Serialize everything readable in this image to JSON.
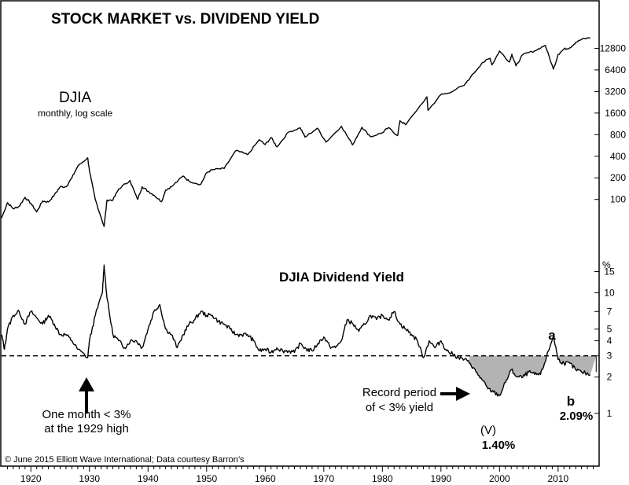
{
  "title": "STOCK MARKET vs. DIVIDEND YIELD",
  "credit": "© June 2015 Elliott Wave International; Data courtesy Barron’s",
  "upper": {
    "label": "DJIA",
    "sublabel": "monthly, log scale"
  },
  "lower": {
    "label": "DJIA Dividend Yield",
    "unit": "%"
  },
  "annotations": {
    "one_month_line1": "One month < 3%",
    "one_month_line2": "at the 1929 high",
    "record_line1": "Record period",
    "record_line2": "of < 3% yield",
    "wave_V": "(V)",
    "wave_V_value": "1.40%",
    "wave_a": "a",
    "wave_b": "b",
    "wave_b_value": "2.09%"
  },
  "chart_data": [
    {
      "type": "line",
      "name": "DJIA",
      "scale": "log",
      "yticks": [
        100,
        200,
        400,
        800,
        1600,
        3200,
        6400,
        12800
      ],
      "ylim": [
        40,
        22000
      ],
      "xlim": [
        1915,
        2017
      ],
      "xticks": [
        1920,
        1930,
        1940,
        1950,
        1960,
        1970,
        1980,
        1990,
        2000,
        2010
      ],
      "points": [
        [
          1915,
          55
        ],
        [
          1916,
          90
        ],
        [
          1917,
          74
        ],
        [
          1918,
          80
        ],
        [
          1919,
          107
        ],
        [
          1920,
          88
        ],
        [
          1921,
          67
        ],
        [
          1922,
          95
        ],
        [
          1923,
          92
        ],
        [
          1924,
          115
        ],
        [
          1925,
          150
        ],
        [
          1926,
          150
        ],
        [
          1927,
          200
        ],
        [
          1928,
          290
        ],
        [
          1929.7,
          381
        ],
        [
          1930,
          248
        ],
        [
          1931,
          100
        ],
        [
          1932.5,
          42
        ],
        [
          1933,
          98
        ],
        [
          1934,
          98
        ],
        [
          1935,
          140
        ],
        [
          1936.9,
          184
        ],
        [
          1938.2,
          100
        ],
        [
          1939,
          150
        ],
        [
          1940,
          130
        ],
        [
          1941,
          115
        ],
        [
          1942.3,
          93
        ],
        [
          1943,
          135
        ],
        [
          1944,
          150
        ],
        [
          1946,
          212
        ],
        [
          1947,
          180
        ],
        [
          1949,
          162
        ],
        [
          1950,
          235
        ],
        [
          1951,
          260
        ],
        [
          1953,
          270
        ],
        [
          1955,
          480
        ],
        [
          1957,
          420
        ],
        [
          1959,
          680
        ],
        [
          1960,
          580
        ],
        [
          1961,
          730
        ],
        [
          1962,
          540
        ],
        [
          1964,
          870
        ],
        [
          1966,
          995
        ],
        [
          1966.8,
          740
        ],
        [
          1968.9,
          985
        ],
        [
          1970.4,
          631
        ],
        [
          1973,
          1050
        ],
        [
          1974.9,
          577
        ],
        [
          1976.5,
          1014
        ],
        [
          1978,
          750
        ],
        [
          1980,
          850
        ],
        [
          1981,
          1000
        ],
        [
          1982.6,
          777
        ],
        [
          1983,
          1250
        ],
        [
          1984,
          1100
        ],
        [
          1987.6,
          2700
        ],
        [
          1987.8,
          1740
        ],
        [
          1990,
          2900
        ],
        [
          1991,
          3000
        ],
        [
          1994,
          3900
        ],
        [
          1995,
          5000
        ],
        [
          1997,
          8000
        ],
        [
          1998.4,
          9300
        ],
        [
          1998.7,
          7500
        ],
        [
          2000,
          11700
        ],
        [
          2001.7,
          8250
        ],
        [
          2002.1,
          10600
        ],
        [
          2002.8,
          7290
        ],
        [
          2004,
          10500
        ],
        [
          2006,
          11800
        ],
        [
          2007.8,
          14100
        ],
        [
          2009.2,
          6550
        ],
        [
          2010,
          10500
        ],
        [
          2011,
          12500
        ],
        [
          2012,
          13000
        ],
        [
          2013,
          15500
        ],
        [
          2014,
          17000
        ],
        [
          2015.5,
          18000
        ]
      ]
    },
    {
      "type": "line",
      "name": "DJIA Dividend Yield",
      "unit": "%",
      "scale": "log",
      "yticks": [
        1,
        2,
        3,
        4,
        5,
        7,
        10,
        15
      ],
      "ylim": [
        0.75,
        22
      ],
      "reference_line": 3,
      "xlim": [
        1915,
        2017
      ],
      "points": [
        [
          1915,
          4.5
        ],
        [
          1915.5,
          3.4
        ],
        [
          1916,
          5.0
        ],
        [
          1917,
          6.5
        ],
        [
          1918,
          7.0
        ],
        [
          1919,
          5.5
        ],
        [
          1920,
          7.0
        ],
        [
          1921,
          6.2
        ],
        [
          1922,
          5.5
        ],
        [
          1923,
          6.5
        ],
        [
          1924,
          5.5
        ],
        [
          1925,
          4.5
        ],
        [
          1926,
          4.5
        ],
        [
          1927,
          4.0
        ],
        [
          1928,
          3.4
        ],
        [
          1929.7,
          2.9
        ],
        [
          1930,
          4.0
        ],
        [
          1931,
          6.5
        ],
        [
          1932.2,
          10.0
        ],
        [
          1932.5,
          17.0
        ],
        [
          1933,
          9.0
        ],
        [
          1934,
          4.5
        ],
        [
          1935,
          4.0
        ],
        [
          1936,
          3.5
        ],
        [
          1937,
          4.0
        ],
        [
          1938,
          4.0
        ],
        [
          1939,
          3.5
        ],
        [
          1940,
          5.0
        ],
        [
          1941,
          7.0
        ],
        [
          1942,
          8.0
        ],
        [
          1943,
          5.0
        ],
        [
          1944,
          4.5
        ],
        [
          1945,
          3.5
        ],
        [
          1946,
          4.5
        ],
        [
          1947,
          5.5
        ],
        [
          1948,
          6.0
        ],
        [
          1949,
          7.0
        ],
        [
          1950,
          6.5
        ],
        [
          1951,
          6.5
        ],
        [
          1952,
          5.8
        ],
        [
          1953,
          5.5
        ],
        [
          1954,
          5.0
        ],
        [
          1955,
          4.5
        ],
        [
          1956,
          4.5
        ],
        [
          1957,
          4.5
        ],
        [
          1958,
          4.0
        ],
        [
          1959,
          3.3
        ],
        [
          1960,
          3.4
        ],
        [
          1961,
          3.2
        ],
        [
          1962,
          3.5
        ],
        [
          1963,
          3.3
        ],
        [
          1964,
          3.3
        ],
        [
          1965,
          3.2
        ],
        [
          1966,
          3.8
        ],
        [
          1967,
          3.4
        ],
        [
          1968,
          3.3
        ],
        [
          1969,
          3.8
        ],
        [
          1970,
          4.3
        ],
        [
          1971,
          3.6
        ],
        [
          1972,
          3.5
        ],
        [
          1973,
          4.0
        ],
        [
          1974,
          6.0
        ],
        [
          1975,
          5.5
        ],
        [
          1976,
          4.8
        ],
        [
          1977,
          5.5
        ],
        [
          1978,
          6.5
        ],
        [
          1979,
          6.0
        ],
        [
          1980,
          6.5
        ],
        [
          1981,
          6.0
        ],
        [
          1982,
          7.0
        ],
        [
          1983,
          5.5
        ],
        [
          1984,
          5.0
        ],
        [
          1985,
          4.5
        ],
        [
          1986,
          4.0
        ],
        [
          1987,
          2.9
        ],
        [
          1988,
          4.0
        ],
        [
          1989,
          3.5
        ],
        [
          1990,
          4.0
        ],
        [
          1991,
          3.3
        ],
        [
          1992,
          3.1
        ],
        [
          1993,
          2.9
        ],
        [
          1994,
          2.8
        ],
        [
          1995,
          2.6
        ],
        [
          1996,
          2.2
        ],
        [
          1997,
          1.9
        ],
        [
          1998,
          1.6
        ],
        [
          1999,
          1.5
        ],
        [
          2000,
          1.4
        ],
        [
          2001,
          1.8
        ],
        [
          2002,
          2.3
        ],
        [
          2003,
          2.0
        ],
        [
          2004,
          2.0
        ],
        [
          2005,
          2.2
        ],
        [
          2006,
          2.1
        ],
        [
          2007,
          2.1
        ],
        [
          2008,
          2.9
        ],
        [
          2009.2,
          4.4
        ],
        [
          2010,
          2.8
        ],
        [
          2011,
          2.6
        ],
        [
          2012,
          2.6
        ],
        [
          2013,
          2.3
        ],
        [
          2014,
          2.2
        ],
        [
          2015.5,
          2.09
        ]
      ]
    }
  ]
}
